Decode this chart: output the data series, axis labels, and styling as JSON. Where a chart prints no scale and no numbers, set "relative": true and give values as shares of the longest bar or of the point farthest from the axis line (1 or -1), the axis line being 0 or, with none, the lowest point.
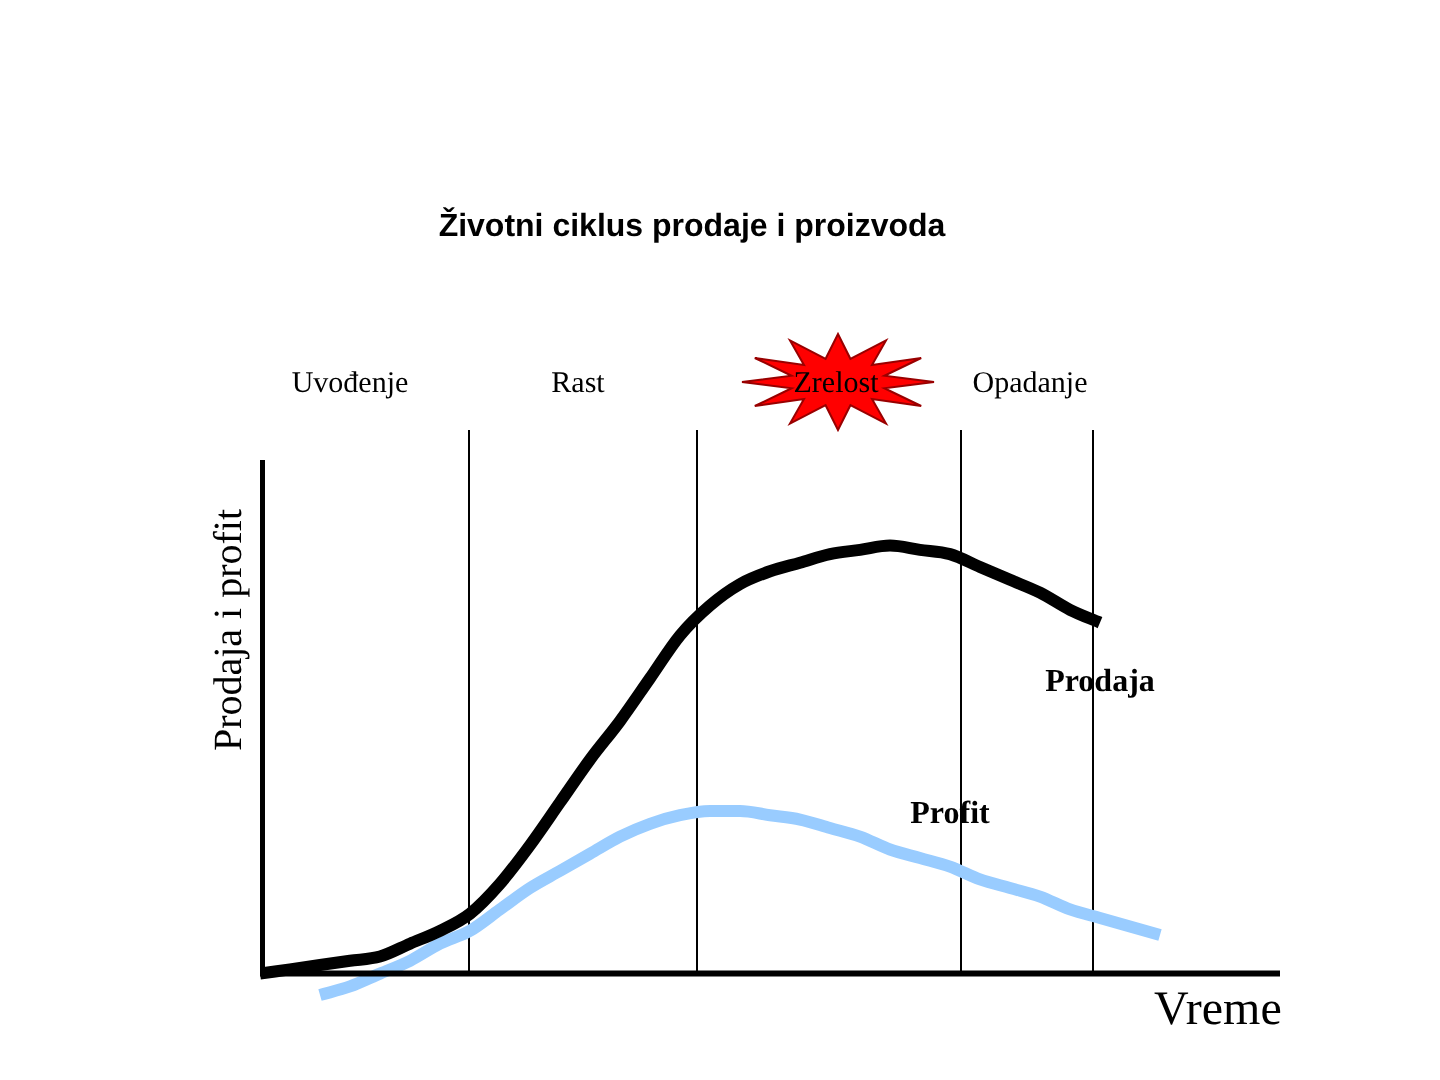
{
  "chart_data": {
    "type": "line",
    "title": "Životni ciklus prodaje i proizvoda",
    "ylabel": "Prodaja i profit",
    "xlabel": "Vreme",
    "relative": true,
    "marker": "none",
    "annotations": [
      "Uvođenje",
      "Rast",
      "Zrelost",
      "Opadanje"
    ],
    "categories": [
      null,
      null,
      null,
      null,
      null,
      null,
      null,
      null,
      null,
      null,
      null,
      null,
      null,
      null,
      null,
      null,
      null,
      null,
      null,
      null,
      null,
      null,
      null,
      null,
      null,
      null,
      null,
      null,
      null,
      null,
      null,
      null,
      null,
      null,
      null
    ],
    "series": [
      {
        "name": "Prodaja",
        "color": "#000000",
        "values": [
          0,
          0.01,
          0.02,
          0.03,
          0.04,
          0.07,
          0.1,
          0.14,
          0.21,
          0.3,
          0.4,
          0.5,
          0.59,
          0.69,
          0.79,
          0.86,
          0.91,
          0.94,
          0.96,
          0.98,
          0.99,
          1,
          0.99,
          0.98,
          0.95,
          0.92,
          0.89,
          0.85,
          0.82,
          null,
          null,
          null,
          null,
          null,
          null
        ]
      },
      {
        "name": "Profit",
        "color": "#99ccff",
        "values": [
          null,
          null,
          -0.05,
          -0.03,
          0,
          0.03,
          0.07,
          0.1,
          0.15,
          0.2,
          0.24,
          0.28,
          0.32,
          0.35,
          0.37,
          0.38,
          0.38,
          0.37,
          0.36,
          0.34,
          0.32,
          0.29,
          0.27,
          0.25,
          0.22,
          0.2,
          0.18,
          0.15,
          0.13,
          0.11,
          0.09,
          null,
          null,
          null,
          null
        ]
      }
    ]
  }
}
